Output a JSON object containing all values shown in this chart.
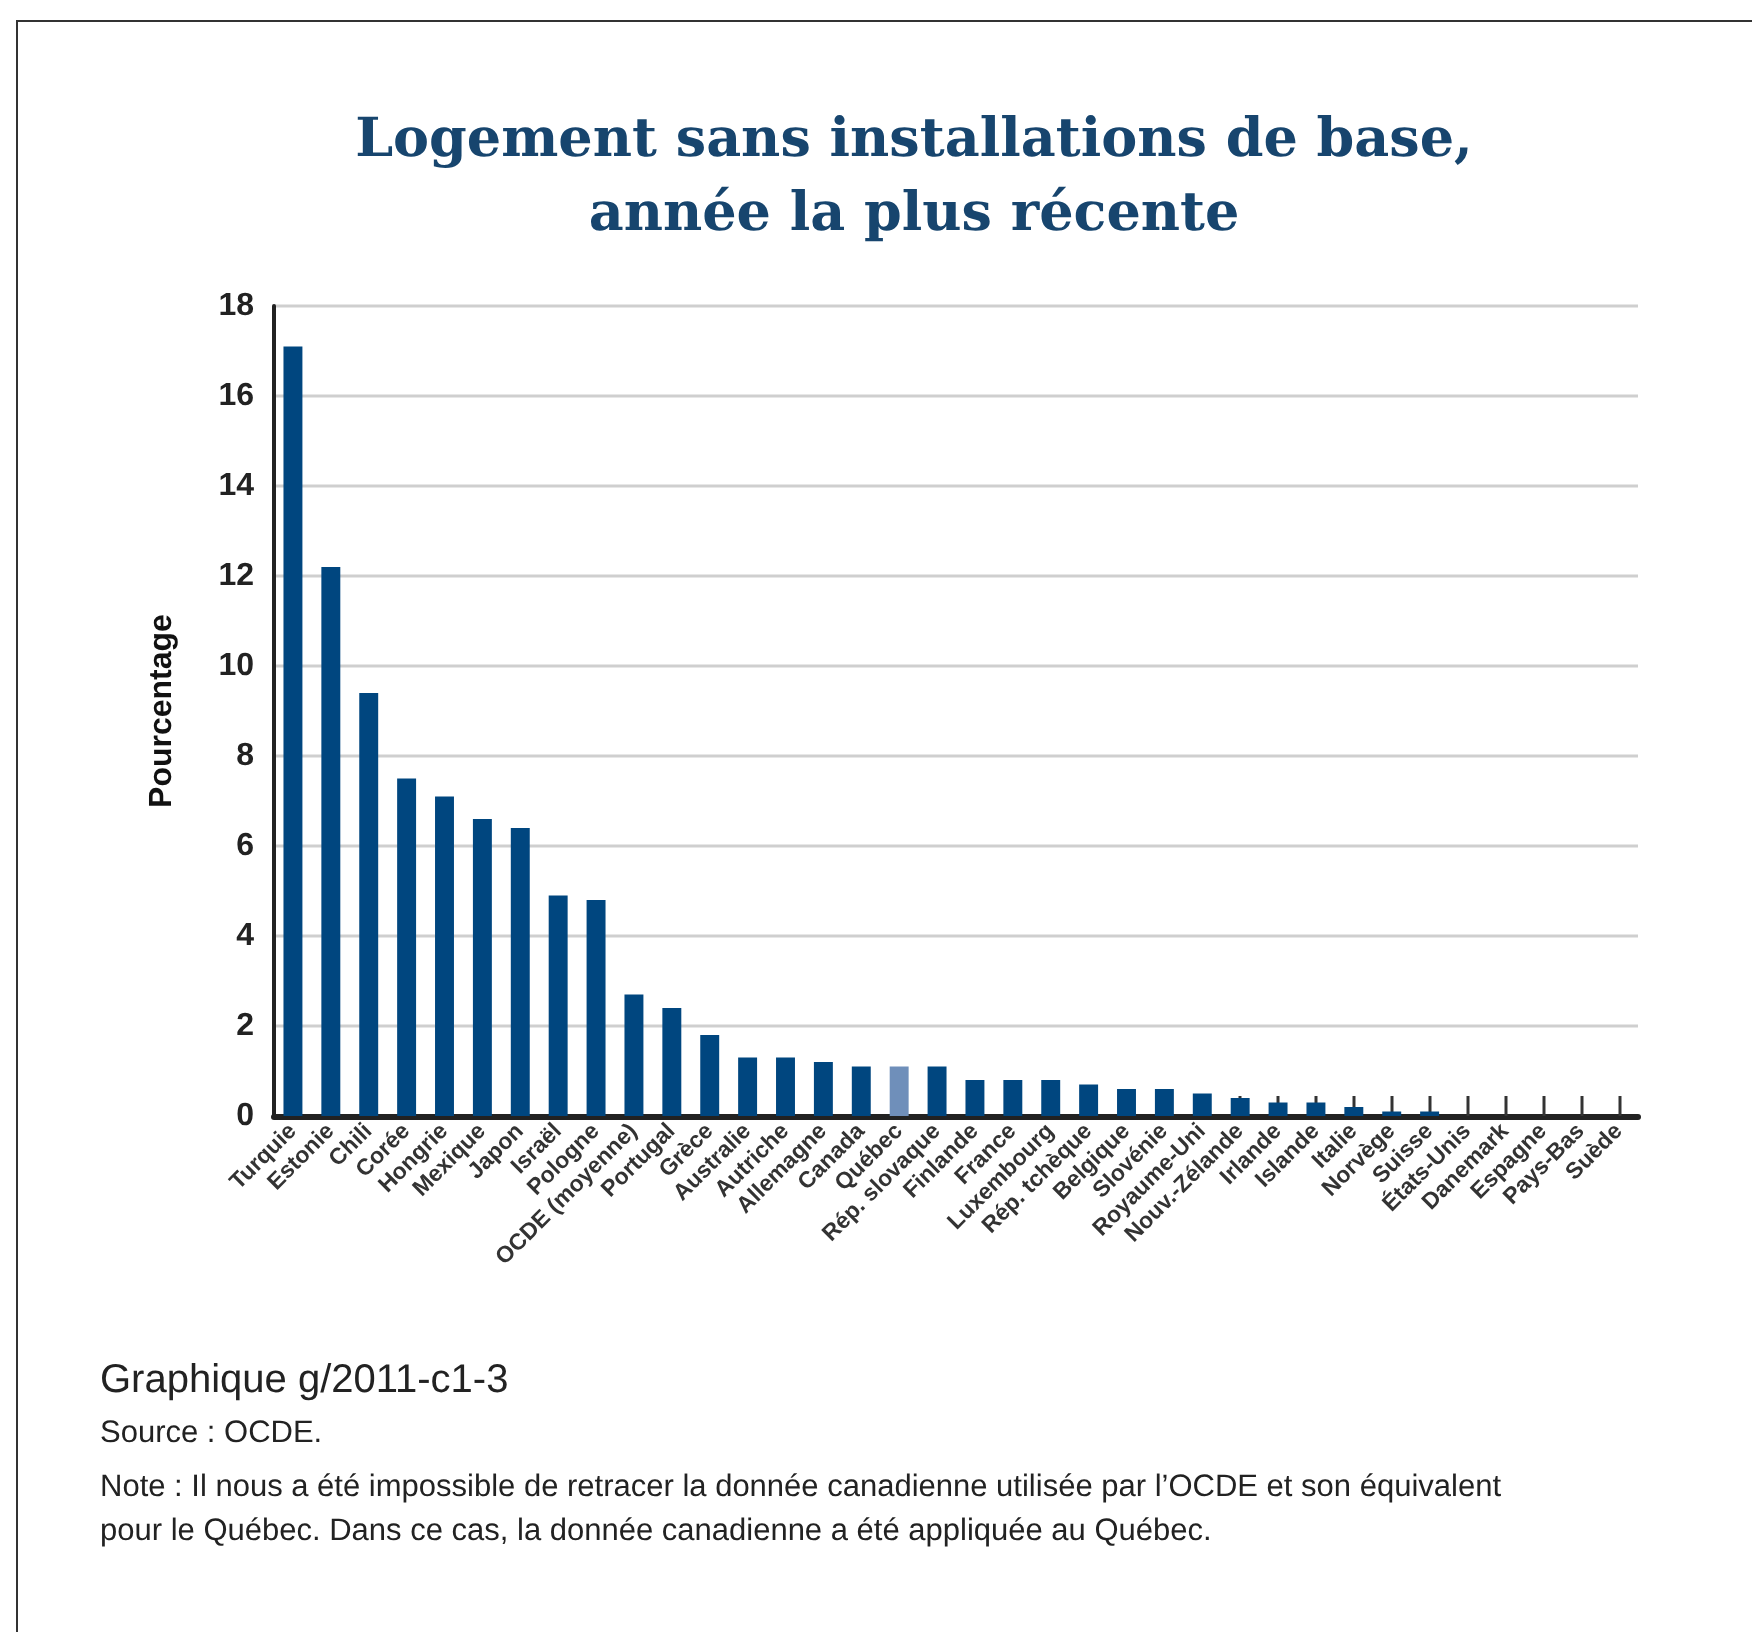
{
  "chart_data": {
    "type": "bar",
    "title": "Logement sans installations de base, année la plus récente",
    "ylabel": "Pourcentage",
    "categories": [
      "Turquie",
      "Estonie",
      "Chili",
      "Corée",
      "Hongrie",
      "Mexique",
      "Japon",
      "Israël",
      "Pologne",
      "OCDE (moyenne)",
      "Portugal",
      "Grèce",
      "Australie",
      "Autriche",
      "Allemagne",
      "Canada",
      "Québec",
      "Rép. slovaque",
      "Finlande",
      "France",
      "Luxembourg",
      "Rép. tchèque",
      "Belgique",
      "Slovénie",
      "Royaume-Uni",
      "Nouv.-Zélande",
      "Irlande",
      "Islande",
      "Italie",
      "Norvège",
      "Suisse",
      "États-Unis",
      "Danemark",
      "Espagne",
      "Pays-Bas",
      "Suède"
    ],
    "values": [
      17.1,
      12.2,
      9.4,
      7.5,
      7.1,
      6.6,
      6.4,
      4.9,
      4.8,
      2.7,
      2.4,
      1.8,
      1.3,
      1.3,
      1.2,
      1.1,
      1.1,
      1.1,
      0.8,
      0.8,
      0.8,
      0.7,
      0.6,
      0.6,
      0.5,
      0.4,
      0.3,
      0.3,
      0.2,
      0.1,
      0.1,
      0,
      0,
      0,
      0,
      0
    ],
    "colors": [
      "#00467f",
      "#00467f",
      "#00467f",
      "#00467f",
      "#00467f",
      "#00467f",
      "#00467f",
      "#00467f",
      "#00467f",
      "#00467f",
      "#00467f",
      "#00467f",
      "#00467f",
      "#00467f",
      "#00467f",
      "#00467f",
      "#6f8fba",
      "#00467f",
      "#00467f",
      "#00467f",
      "#00467f",
      "#00467f",
      "#00467f",
      "#00467f",
      "#00467f",
      "#00467f",
      "#00467f",
      "#00467f",
      "#00467f",
      "#00467f",
      "#00467f",
      "#00467f",
      "#00467f",
      "#00467f",
      "#00467f",
      "#00467f"
    ],
    "ylim": [
      0,
      18
    ],
    "yticks": [
      0,
      2,
      4,
      6,
      8,
      10,
      12,
      14,
      16,
      18
    ],
    "grid": "y",
    "annotations": [
      "Graphique g/2011-c1-3",
      "Source : OCDE.",
      "Note : Il nous a été impossible de retracer la donnée canadienne utilisée par l’OCDE et son équivalent pour le Québec. Dans ce cas, la donnée canadienne a été appliquée au Québec."
    ]
  }
}
